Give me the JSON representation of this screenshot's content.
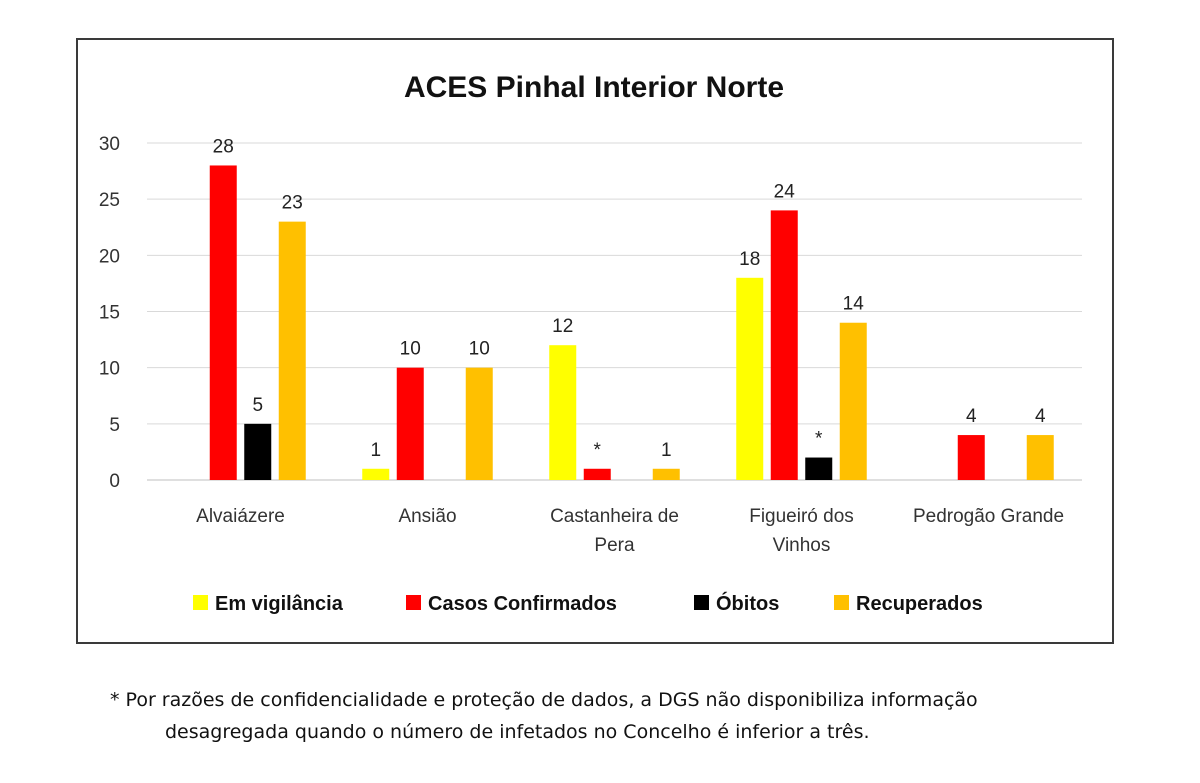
{
  "chart_data": {
    "type": "bar",
    "title": "ACES Pinhal Interior Norte",
    "categories": [
      "Alvaiázere",
      "Ansião",
      "Castanheira de Pera",
      "Figueiró dos Vinhos",
      "Pedrogão Grande"
    ],
    "category_lines": [
      [
        "Alvaiázere"
      ],
      [
        "Ansião"
      ],
      [
        "Castanheira de",
        "Pera"
      ],
      [
        "Figueiró dos",
        "Vinhos"
      ],
      [
        "Pedrogão Grande"
      ]
    ],
    "ylim": [
      0,
      30
    ],
    "yticks": [
      0,
      5,
      10,
      15,
      20,
      25,
      30
    ],
    "grid": true,
    "legend_position": "bottom",
    "series": [
      {
        "name": "Em vigilância",
        "color": "#ffff00",
        "values": [
          null,
          1,
          12,
          18,
          null
        ],
        "labels": [
          "",
          "1",
          "12",
          "18",
          ""
        ]
      },
      {
        "name": "Casos Confirmados",
        "color": "#ff0000",
        "values": [
          28,
          10,
          1,
          24,
          4
        ],
        "labels": [
          "28",
          "10",
          "*",
          "24",
          "4"
        ]
      },
      {
        "name": "Óbitos",
        "color": "#000000",
        "values": [
          5,
          null,
          null,
          2,
          null
        ],
        "labels": [
          "5",
          "",
          "",
          "*",
          ""
        ]
      },
      {
        "name": "Recuperados",
        "color": "#ffc000",
        "values": [
          23,
          10,
          1,
          14,
          4
        ],
        "labels": [
          "23",
          "10",
          "1",
          "14",
          "4"
        ]
      }
    ]
  },
  "footnote": {
    "line1": "* Por razões de confidencialidade e proteção de dados, a DGS não disponibiliza informação",
    "line2": "desagregada quando o número de infetados no Concelho é inferior a três."
  }
}
